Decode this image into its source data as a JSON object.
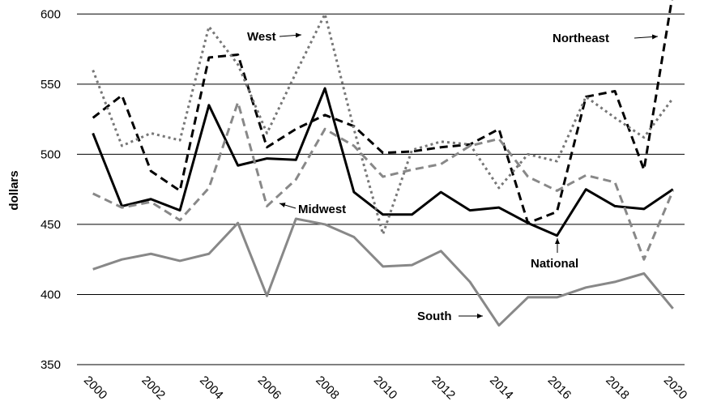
{
  "chart_data": {
    "type": "line",
    "ylabel": "dollars",
    "x": [
      2000,
      2001,
      2002,
      2003,
      2004,
      2005,
      2006,
      2007,
      2008,
      2009,
      2010,
      2011,
      2012,
      2013,
      2014,
      2015,
      2016,
      2017,
      2018,
      2019,
      2020
    ],
    "xlim": [
      1999.45,
      2020.4
    ],
    "xticks": [
      2000,
      2002,
      2004,
      2006,
      2008,
      2010,
      2012,
      2014,
      2016,
      2018,
      2020
    ],
    "ylim": [
      350,
      610
    ],
    "yticks": [
      350,
      400,
      450,
      500,
      550,
      600
    ],
    "grid": true,
    "series": [
      {
        "name": "National",
        "color": "#000000",
        "dash": "solid",
        "values": [
          515,
          463,
          468,
          460,
          535,
          492,
          497,
          496,
          547,
          473,
          457,
          457,
          473,
          460,
          462,
          451,
          442,
          475,
          463,
          461,
          475
        ]
      },
      {
        "name": "Northeast",
        "color": "#000000",
        "dash": "dashed",
        "values": [
          526,
          542,
          488,
          474,
          569,
          571,
          505,
          518,
          528,
          520,
          501,
          502,
          505,
          507,
          518,
          451,
          459,
          541,
          545,
          489,
          615
        ]
      },
      {
        "name": "West",
        "color": "#777777",
        "dash": "dotted",
        "values": [
          560,
          506,
          515,
          510,
          591,
          564,
          515,
          558,
          600,
          518,
          443,
          503,
          509,
          507,
          476,
          500,
          495,
          541,
          526,
          512,
          540
        ]
      },
      {
        "name": "Midwest",
        "color": "#888888",
        "dash": "dashed",
        "values": [
          472,
          462,
          466,
          453,
          476,
          537,
          463,
          482,
          518,
          506,
          484,
          489,
          493,
          506,
          511,
          484,
          474,
          485,
          480,
          425,
          474
        ]
      },
      {
        "name": "South",
        "color": "#888888",
        "dash": "solid",
        "values": [
          418,
          425,
          429,
          424,
          429,
          451,
          399,
          454,
          450,
          441,
          420,
          421,
          431,
          409,
          378,
          398,
          398,
          405,
          409,
          415,
          390
        ]
      }
    ]
  }
}
